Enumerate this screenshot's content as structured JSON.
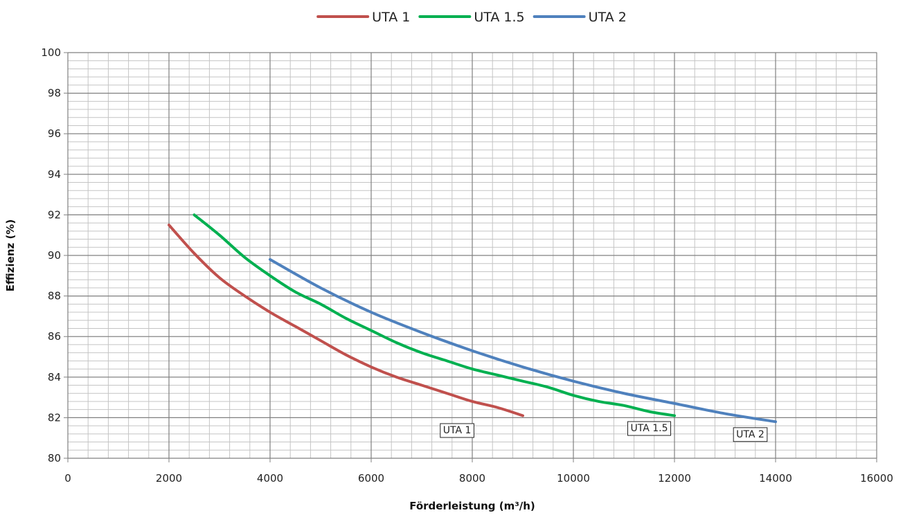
{
  "chart_data": {
    "type": "line",
    "xlabel": "Förderleistung (m³/h)",
    "ylabel": "Effizienz (%)",
    "xlim": [
      0,
      16000
    ],
    "ylim": [
      80,
      100
    ],
    "x_ticks": [
      "0",
      "2000",
      "4000",
      "6000",
      "8000",
      "10000",
      "12000",
      "14000",
      "16000"
    ],
    "y_ticks": [
      "80",
      "82",
      "84",
      "86",
      "88",
      "90",
      "92",
      "94",
      "96",
      "98",
      "100"
    ],
    "grid": true,
    "legend_position": "top-center",
    "series": [
      {
        "name": "UTA 1",
        "color": "#c0504d",
        "x": [
          2000,
          2500,
          3000,
          3500,
          4000,
          4500,
          5000,
          5500,
          6000,
          6500,
          7000,
          7500,
          8000,
          8500,
          9000
        ],
        "y": [
          91.5,
          90.1,
          88.9,
          88.0,
          87.2,
          86.5,
          85.8,
          85.1,
          84.5,
          84.0,
          83.6,
          83.2,
          82.8,
          82.5,
          82.1
        ]
      },
      {
        "name": "UTA 1.5",
        "color": "#00b050",
        "x": [
          2500,
          3000,
          3500,
          4000,
          4500,
          5000,
          5500,
          6000,
          6500,
          7000,
          7500,
          8000,
          8500,
          9000,
          9500,
          10000,
          10500,
          11000,
          11500,
          12000
        ],
        "y": [
          92.0,
          91.0,
          89.9,
          89.0,
          88.2,
          87.6,
          86.9,
          86.3,
          85.7,
          85.2,
          84.8,
          84.4,
          84.1,
          83.8,
          83.5,
          83.1,
          82.8,
          82.6,
          82.3,
          82.1
        ]
      },
      {
        "name": "UTA 2",
        "color": "#4f81bd",
        "x": [
          4000,
          5000,
          6000,
          7000,
          8000,
          9000,
          10000,
          11000,
          12000,
          13000,
          14000
        ],
        "y": [
          89.8,
          88.4,
          87.2,
          86.2,
          85.3,
          84.5,
          83.8,
          83.2,
          82.7,
          82.2,
          81.8
        ]
      }
    ],
    "annotations": [
      {
        "text": "UTA 1",
        "x": 7700,
        "y": 81.4
      },
      {
        "text": "UTA 1.5",
        "x": 11500,
        "y": 81.5
      },
      {
        "text": "UTA 2",
        "x": 13500,
        "y": 81.2
      }
    ]
  }
}
